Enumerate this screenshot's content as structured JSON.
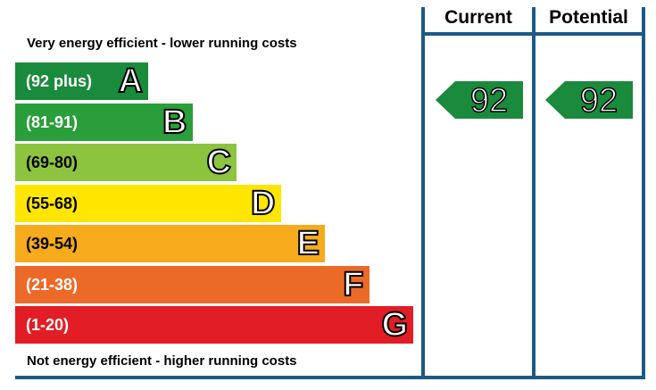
{
  "chart_data": {
    "type": "bar",
    "top_note": "Very energy efficient - lower running costs",
    "bottom_note": "Not energy efficient - higher running costs",
    "bands": [
      {
        "range": "(92 plus)",
        "letter": "A",
        "color": "#1a8a3c"
      },
      {
        "range": "(81-91)",
        "letter": "B",
        "color": "#2a9e3a"
      },
      {
        "range": "(69-80)",
        "letter": "C",
        "color": "#8cc43f"
      },
      {
        "range": "(55-68)",
        "letter": "D",
        "color": "#ffe600"
      },
      {
        "range": "(39-54)",
        "letter": "E",
        "color": "#f5ab1c"
      },
      {
        "range": "(21-38)",
        "letter": "F",
        "color": "#ec6a28"
      },
      {
        "range": "(1-20)",
        "letter": "G",
        "color": "#e21d25"
      }
    ],
    "columns": [
      {
        "label": "Current",
        "value": "92",
        "band": "A",
        "color": "#1a8a3c"
      },
      {
        "label": "Potential",
        "value": "92",
        "band": "A",
        "color": "#1a8a3c"
      }
    ]
  }
}
